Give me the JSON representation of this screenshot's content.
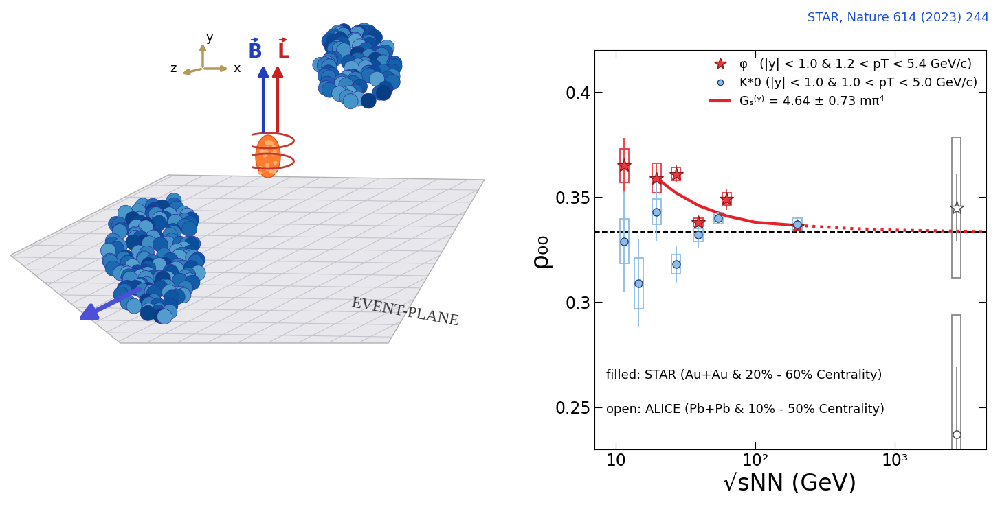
{
  "citation": "STAR, Nature 614 (2023) 244",
  "diagram": {
    "axis_labels": {
      "x": "x",
      "y": "y",
      "z": "z"
    },
    "vectors": [
      "B",
      "L"
    ],
    "plane_label": "EVENT-PLANE"
  },
  "chart_data": {
    "type": "scatter",
    "x_label": "√sNN (GeV)",
    "y_label": "ρ₀₀",
    "log": "x",
    "xlim": [
      7,
      4500
    ],
    "xticks": [
      10,
      {
        "value": 100,
        "label": "10²"
      },
      {
        "value": 1000,
        "label": "10³"
      }
    ],
    "ylim": [
      0.23,
      0.42
    ],
    "yticks": [
      0.25,
      0.3,
      0.35,
      0.4
    ],
    "legend": "upper right",
    "annotations": [
      "filled: STAR (Au+Au & 20% - 60% Centrality)",
      "open: ALICE (Pb+Pb & 10% - 50% Centrality)"
    ],
    "series": [
      {
        "type": "hline",
        "values": [
          0.3333
        ],
        "color": "#000000",
        "line_style": "dashed"
      },
      {
        "name": "Gₛ⁽ʸ⁾ = 4.64 ± 0.73 mπ⁴",
        "type": "line",
        "color": "#e8202a",
        "line_style": "solid",
        "x": [
          19.6,
          27,
          39,
          62.4,
          100,
          200
        ],
        "values": [
          0.359,
          0.352,
          0.346,
          0.341,
          0.338,
          0.3365
        ]
      },
      {
        "type": "line",
        "color": "#e8202a",
        "line_style": "dotted",
        "x": [
          200,
          500,
          1000,
          2760,
          4500
        ],
        "values": [
          0.3365,
          0.335,
          0.3343,
          0.3338,
          0.3336
        ]
      },
      {
        "name": "φ   (|y| < 1.0 & 1.2 < pT < 5.4 GeV/c)",
        "type": "scatter",
        "marker": "star",
        "color": "#e8393f",
        "x": [
          11.5,
          19.6,
          27,
          39,
          62.4,
          200
        ],
        "values": [
          0.365,
          0.359,
          0.361,
          0.338,
          0.349,
          0.336
        ],
        "errors": [
          0.013,
          0.007,
          0.004,
          0.002,
          0.005,
          0.002
        ],
        "sys_errors": [
          0.008,
          0.007,
          0.003,
          0.002,
          0.003,
          0.0015
        ]
      },
      {
        "name": "K*0 (|y| < 1.0 & 1.0 < pT < 5.0 GeV/c)",
        "type": "scatter",
        "marker": "circle",
        "color": "#8dbde6",
        "x": [
          11.5,
          14.6,
          19.6,
          27,
          39,
          54.4,
          200
        ],
        "values": [
          0.329,
          0.309,
          0.343,
          0.318,
          0.332,
          0.34,
          0.337
        ],
        "errors": [
          0.024,
          0.021,
          0.014,
          0.009,
          0.006,
          0.003,
          0.003
        ],
        "sys_errors": [
          0.0105,
          0.012,
          0.006,
          0.0045,
          0.003,
          0.0025,
          0.003
        ]
      },
      {
        "type": "scatter",
        "marker": "hollow-star",
        "color": "#666666",
        "x": [
          2760
        ],
        "values": [
          0.345
        ],
        "errors": [
          0.016
        ],
        "sys_errors": [
          0.0335
        ]
      },
      {
        "type": "scatter",
        "marker": "hollow-circle",
        "color": "#333333",
        "x": [
          2760
        ],
        "values": [
          0.237
        ],
        "errors": [
          0.032
        ],
        "sys_errors": [
          0.057
        ]
      }
    ]
  }
}
